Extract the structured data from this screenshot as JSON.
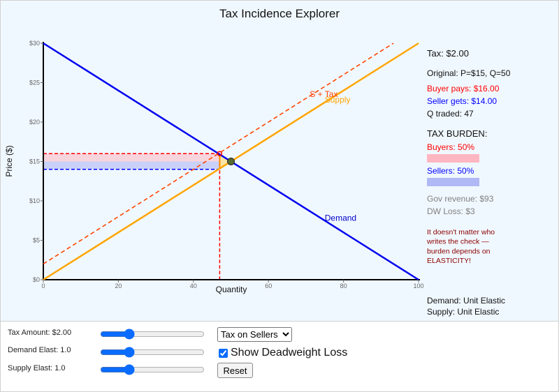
{
  "title": "Tax Incidence Explorer",
  "chart_data": {
    "type": "line",
    "xlabel": "Quantity",
    "ylabel": "Price ($)",
    "xlim": [
      0,
      100
    ],
    "ylim": [
      0,
      30
    ],
    "x_ticks": [
      "0",
      "20",
      "40",
      "60",
      "80",
      "100"
    ],
    "x_tick_values": [
      0,
      20,
      40,
      60,
      80,
      100
    ],
    "y_ticks": [
      "$0",
      "$5",
      "$10",
      "$15",
      "$20",
      "$25",
      "$30"
    ],
    "y_tick_values": [
      0,
      5,
      10,
      15,
      20,
      25,
      30
    ],
    "series": [
      {
        "name": "Demand",
        "color": "#0000ee",
        "style": "solid",
        "points": [
          [
            0,
            30
          ],
          [
            100,
            0
          ]
        ]
      },
      {
        "name": "Supply",
        "color": "#ffa500",
        "style": "solid",
        "points": [
          [
            0,
            0
          ],
          [
            100,
            30
          ]
        ]
      },
      {
        "name": "S + Tax",
        "color": "#ff4500",
        "style": "dashed",
        "points": [
          [
            0,
            2
          ],
          [
            93.3,
            30
          ]
        ]
      }
    ],
    "series_labels": [
      {
        "text": "Demand",
        "x": 75,
        "y": 7.5,
        "color": "#0000cc"
      },
      {
        "text": "Supply",
        "x": 75,
        "y": 22.5,
        "color": "#ffa500"
      },
      {
        "text": "S + Tax",
        "x": 71,
        "y": 23.2,
        "color": "#ff4500"
      }
    ],
    "original_equilibrium": {
      "x": 50,
      "y": 15
    },
    "new_quantity": 47,
    "buyer_price": 16,
    "seller_price": 14,
    "show_deadweight_loss": true,
    "grid": false
  },
  "info": {
    "tax": "Tax: $2.00",
    "original": "Original: P=$15, Q=50",
    "buyer_pays": "Buyer pays: $16.00",
    "seller_gets": "Seller gets: $14.00",
    "q_traded": "Q traded: 47",
    "burden_heading": "TAX BURDEN:",
    "buyers_share": "Buyers: 50%",
    "buyers_fraction": 0.5,
    "sellers_share": "Sellers: 50%",
    "sellers_fraction": 0.5,
    "gov_revenue": "Gov revenue: $93",
    "dw_loss": "DW Loss: $3",
    "note_lines": [
      "It doesn't matter who",
      "writes the check —",
      "burden depends on",
      "ELASTICITY!"
    ],
    "demand_type": "Demand: Unit Elastic",
    "supply_type": "Supply: Unit Elastic"
  },
  "colors": {
    "buyer": "#ff0000",
    "seller": "#0000ff",
    "buyer_band": "#ffb6c1",
    "seller_band": "#b0b8f5",
    "note": "#8b0000",
    "muted": "#808080"
  },
  "controls": {
    "tax_label": "Tax Amount: $2.00",
    "tax_value": 0.25,
    "demand_label": "Demand Elast: 1.0",
    "demand_value": 0.25,
    "supply_label": "Supply Elast: 1.0",
    "supply_value": 0.25,
    "mode_options": [
      "Tax on Sellers"
    ],
    "mode_selected": "Tax on Sellers",
    "dwl_checkbox_label": "Show Deadweight Loss",
    "dwl_checked": true,
    "reset_label": "Reset"
  }
}
